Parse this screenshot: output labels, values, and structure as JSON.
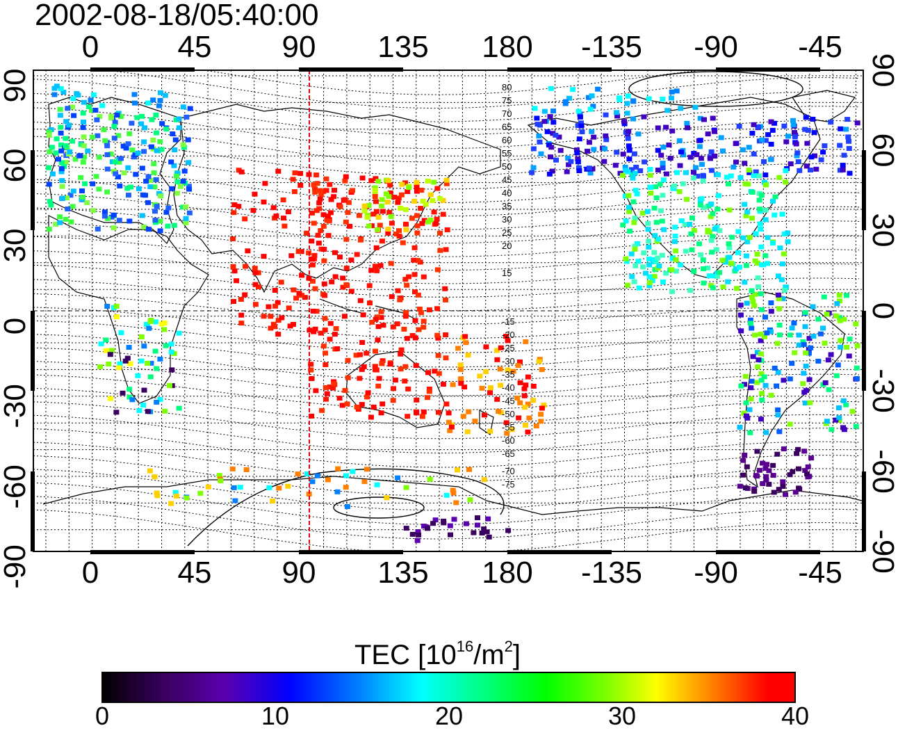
{
  "title": "2002-08-18/05:40:00",
  "map": {
    "top_axis_ticks": [
      "0",
      "45",
      "90",
      "135",
      "180",
      "-135",
      "-90",
      "-45"
    ],
    "bottom_axis_ticks": [
      "0",
      "45",
      "90",
      "135",
      "180",
      "-135",
      "-90",
      "-45"
    ],
    "left_axis_ticks": [
      "90",
      "60",
      "30",
      "0",
      "-30",
      "-60",
      "-90"
    ],
    "right_axis_ticks": [
      "90",
      "60",
      "30",
      "0",
      "-30",
      "-60",
      "-90"
    ],
    "magnetic_latitude_labels_north": [
      "80",
      "75",
      "70",
      "65",
      "60",
      "55",
      "50",
      "45",
      "40",
      "35",
      "30",
      "25",
      "20",
      "15"
    ],
    "magnetic_latitude_labels_south": [
      "-15",
      "-20",
      "-25",
      "-30",
      "-35",
      "-40",
      "-45",
      "-50",
      "-55",
      "-60",
      "-65",
      "-70",
      "-75"
    ],
    "sun_meridian_color": "#e8000b"
  },
  "colorbar": {
    "title": "TEC  [10",
    "title_sup1": "16",
    "title_mid": "/m",
    "title_sup2": "2",
    "title_end": "]",
    "ticks": [
      "0",
      "10",
      "20",
      "30",
      "40"
    ],
    "range": [
      0,
      40
    ],
    "colors": [
      "#000000",
      "#3a0060",
      "#5a00b0",
      "#0000ff",
      "#0080ff",
      "#00ffff",
      "#00ff80",
      "#00ff00",
      "#80ff00",
      "#ffff00",
      "#ff8000",
      "#ff0000"
    ]
  }
}
